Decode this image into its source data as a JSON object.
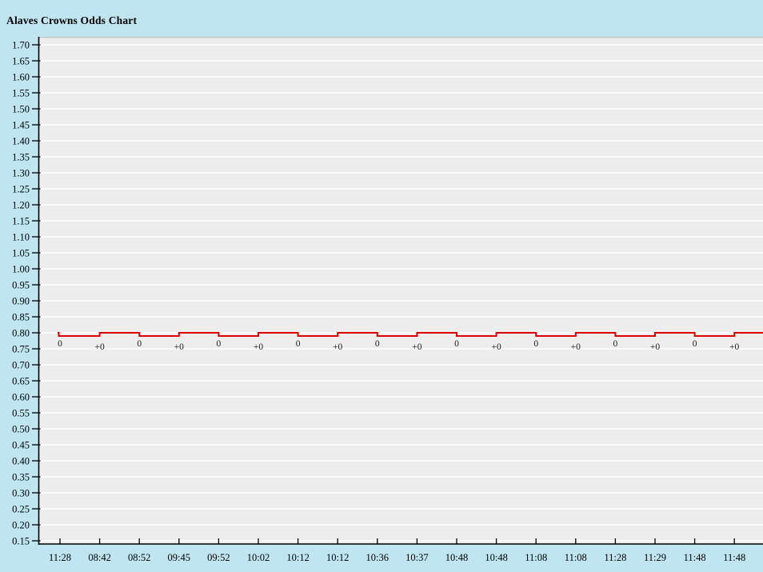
{
  "header": {
    "title": "Alaves Crowns Odds Chart"
  },
  "colors": {
    "page_bg": "#bfe6f0",
    "plot_bg": "#ededed",
    "plot_top_border": "#c9c9c9",
    "gridline": "#ffffff",
    "axis": "#000000",
    "tick": "#000000",
    "label_text": "#000000",
    "annotation_text": "#1a1a1a",
    "line": "#dd0000"
  },
  "chart_data": {
    "type": "line",
    "line_style": "step",
    "title": "Alaves Crowns Odds Chart",
    "xlabel": "",
    "ylabel": "",
    "ylim": [
      0.15,
      1.7
    ],
    "y_tick_step": 0.05,
    "grid": true,
    "legend": false,
    "initial_value": 0.8,
    "value_low": 0.79,
    "value_high": 0.8,
    "y_tick_labels": [
      "1.70",
      "1.65",
      "1.60",
      "1.55",
      "1.50",
      "1.45",
      "1.40",
      "1.35",
      "1.30",
      "1.25",
      "1.20",
      "1.15",
      "1.10",
      "1.05",
      "1.00",
      "0.95",
      "0.90",
      "0.85",
      "0.80",
      "0.75",
      "0.70",
      "0.65",
      "0.60",
      "0.55",
      "0.50",
      "0.45",
      "0.40",
      "0.35",
      "0.30",
      "0.25",
      "0.20",
      "0.15"
    ],
    "points": [
      {
        "time": "11:28",
        "annotation": "0",
        "value": 0.79
      },
      {
        "time": "08:42",
        "annotation": "+0",
        "value": 0.8
      },
      {
        "time": "08:52",
        "annotation": "0",
        "value": 0.79
      },
      {
        "time": "09:45",
        "annotation": "+0",
        "value": 0.8
      },
      {
        "time": "09:52",
        "annotation": "0",
        "value": 0.79
      },
      {
        "time": "10:02",
        "annotation": "+0",
        "value": 0.8
      },
      {
        "time": "10:12",
        "annotation": "0",
        "value": 0.79
      },
      {
        "time": "10:12",
        "annotation": "+0",
        "value": 0.8
      },
      {
        "time": "10:36",
        "annotation": "0",
        "value": 0.79
      },
      {
        "time": "10:37",
        "annotation": "+0",
        "value": 0.8
      },
      {
        "time": "10:48",
        "annotation": "0",
        "value": 0.79
      },
      {
        "time": "10:48",
        "annotation": "+0",
        "value": 0.8
      },
      {
        "time": "11:08",
        "annotation": "0",
        "value": 0.79
      },
      {
        "time": "11:08",
        "annotation": "+0",
        "value": 0.8
      },
      {
        "time": "11:28",
        "annotation": "0",
        "value": 0.79
      },
      {
        "time": "11:29",
        "annotation": "+0",
        "value": 0.8
      },
      {
        "time": "11:48",
        "annotation": "0",
        "value": 0.79
      },
      {
        "time": "11:48",
        "annotation": "+0",
        "value": 0.8
      }
    ]
  }
}
